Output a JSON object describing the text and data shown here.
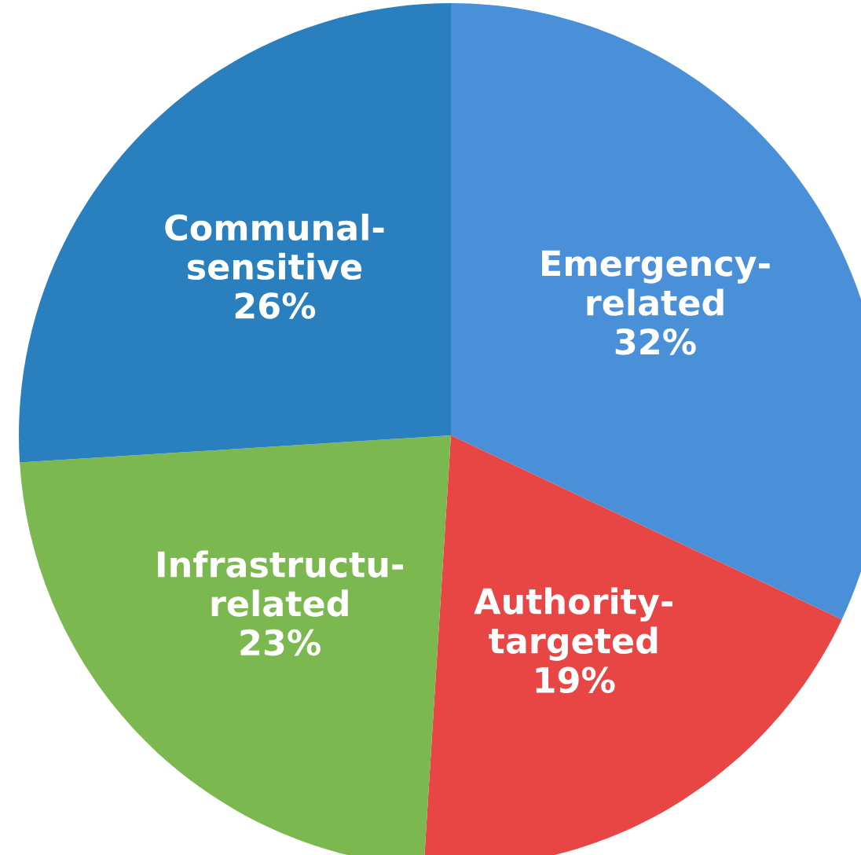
{
  "chart_data": {
    "type": "pie",
    "categories": [
      "Emergency-\nrelated",
      "Authority-\ntargeted",
      "Infrastructu-\nrelated",
      "Communal-\nsensitive"
    ],
    "values": [
      32,
      19,
      23,
      26
    ],
    "value_labels": [
      "32%",
      "19%",
      "23%",
      "26%"
    ],
    "colors": [
      "#4a90d9",
      "#e84545",
      "#7cb850",
      "#2a7fbf"
    ]
  }
}
